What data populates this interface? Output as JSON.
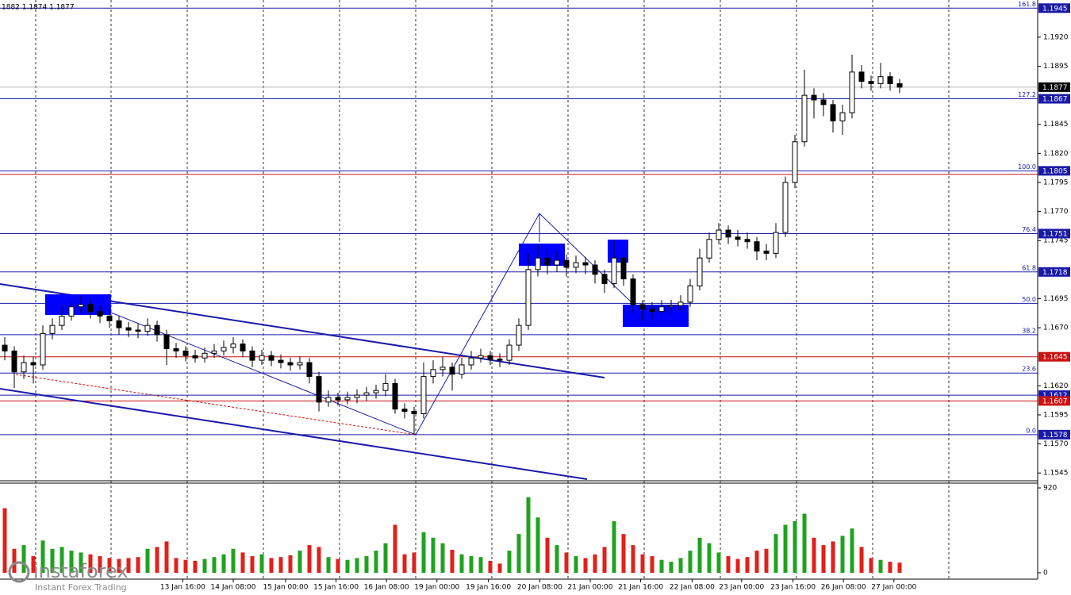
{
  "chart_data": {
    "type": "candlestick",
    "header": "1882 1.1874 1.1877",
    "brand": "instaforex",
    "tagline": "Instant Forex Trading",
    "open": [
      1.1655,
      1.165,
      1.1632,
      1.164,
      1.1638,
      1.1665,
      1.1672,
      1.168,
      1.1688,
      1.169,
      1.1684,
      1.168,
      1.1676,
      1.167,
      1.1668,
      1.1667,
      1.1672,
      1.1664,
      1.1652,
      1.165,
      1.1646,
      1.1644,
      1.1648,
      1.165,
      1.1653,
      1.1656,
      1.165,
      1.1642,
      1.1646,
      1.1642,
      1.164,
      1.1638,
      1.164,
      1.1628,
      1.1606,
      1.161,
      1.1608,
      1.161,
      1.1612,
      1.1614,
      1.1616,
      1.1622,
      1.16,
      1.1598,
      1.1596,
      1.1628,
      1.1634,
      1.1636,
      1.163,
      1.1638,
      1.1644,
      1.1646,
      1.1643,
      1.1642,
      1.1655,
      1.1672,
      1.172,
      1.173,
      1.1724,
      1.1728,
      1.1722,
      1.1726,
      1.1724,
      1.1716,
      1.1708,
      1.173,
      1.1712,
      1.169,
      1.1686,
      1.1684,
      1.1688,
      1.1689,
      1.1692,
      1.1706,
      1.173,
      1.1746,
      1.1754,
      1.1748,
      1.1746,
      1.1744,
      1.1736,
      1.1734,
      1.1752,
      1.1795,
      1.183,
      1.187,
      1.1866,
      1.1862,
      1.1848,
      1.1855,
      1.189,
      1.1882,
      1.188,
      1.1886,
      1.188
    ],
    "high": [
      1.1662,
      1.1654,
      1.1646,
      1.1645,
      1.1672,
      1.1678,
      1.1688,
      1.1694,
      1.1697,
      1.1694,
      1.1689,
      1.1685,
      1.168,
      1.1675,
      1.1674,
      1.1678,
      1.1676,
      1.1668,
      1.1657,
      1.1654,
      1.1651,
      1.1653,
      1.1656,
      1.1659,
      1.1662,
      1.166,
      1.1654,
      1.1651,
      1.165,
      1.1647,
      1.1644,
      1.1645,
      1.1644,
      1.1632,
      1.1616,
      1.1614,
      1.1615,
      1.1617,
      1.1619,
      1.1621,
      1.163,
      1.1626,
      1.1605,
      1.1602,
      1.164,
      1.1642,
      1.1645,
      1.164,
      1.1644,
      1.165,
      1.1652,
      1.165,
      1.1648,
      1.166,
      1.1678,
      1.1734,
      1.1742,
      1.1738,
      1.1736,
      1.1733,
      1.1732,
      1.1731,
      1.1728,
      1.172,
      1.1745,
      1.1736,
      1.1716,
      1.1694,
      1.1692,
      1.1694,
      1.1694,
      1.1698,
      1.1712,
      1.1738,
      1.1752,
      1.176,
      1.1758,
      1.1754,
      1.1752,
      1.1748,
      1.1742,
      1.176,
      1.18,
      1.1836,
      1.1892,
      1.1876,
      1.1872,
      1.1866,
      1.1862,
      1.1905,
      1.1896,
      1.1887,
      1.1898,
      1.189,
      1.1884
    ],
    "low": [
      1.1642,
      1.1618,
      1.1626,
      1.1622,
      1.1634,
      1.166,
      1.1668,
      1.1676,
      1.1683,
      1.1678,
      1.1674,
      1.167,
      1.1664,
      1.1662,
      1.1661,
      1.1663,
      1.1658,
      1.1638,
      1.1644,
      1.1641,
      1.164,
      1.164,
      1.1644,
      1.1646,
      1.1648,
      1.1645,
      1.1636,
      1.1638,
      1.1637,
      1.1635,
      1.1633,
      1.1634,
      1.1622,
      1.1598,
      1.1602,
      1.1603,
      1.1604,
      1.1605,
      1.1607,
      1.1609,
      1.1611,
      1.1596,
      1.1592,
      1.1578,
      1.1592,
      1.1622,
      1.1628,
      1.1616,
      1.1626,
      1.1634,
      1.164,
      1.1638,
      1.1636,
      1.1638,
      1.165,
      1.1668,
      1.1714,
      1.1716,
      1.1718,
      1.1714,
      1.1717,
      1.1716,
      1.1708,
      1.17,
      1.1704,
      1.1706,
      1.1682,
      1.1676,
      1.1678,
      1.168,
      1.1682,
      1.1685,
      1.1688,
      1.1702,
      1.1726,
      1.1742,
      1.1742,
      1.174,
      1.1738,
      1.1728,
      1.1728,
      1.173,
      1.1748,
      1.179,
      1.1826,
      1.185,
      1.1852,
      1.1838,
      1.1836,
      1.185,
      1.1876,
      1.1874,
      1.1876,
      1.1874,
      1.1872
    ],
    "close": [
      1.165,
      1.1632,
      1.164,
      1.1638,
      1.1665,
      1.1672,
      1.168,
      1.1688,
      1.169,
      1.1684,
      1.168,
      1.1676,
      1.167,
      1.1668,
      1.1667,
      1.1672,
      1.1664,
      1.1652,
      1.165,
      1.1646,
      1.1644,
      1.1648,
      1.165,
      1.1653,
      1.1656,
      1.165,
      1.1642,
      1.1646,
      1.1642,
      1.164,
      1.1638,
      1.164,
      1.1628,
      1.1606,
      1.161,
      1.1608,
      1.161,
      1.1612,
      1.1614,
      1.1616,
      1.1622,
      1.16,
      1.1598,
      1.1596,
      1.1628,
      1.1634,
      1.1636,
      1.163,
      1.1638,
      1.1644,
      1.1646,
      1.1643,
      1.1642,
      1.1655,
      1.1672,
      1.172,
      1.173,
      1.1724,
      1.1728,
      1.1722,
      1.1726,
      1.1724,
      1.1716,
      1.1708,
      1.173,
      1.1712,
      1.169,
      1.1686,
      1.1684,
      1.1688,
      1.1689,
      1.1692,
      1.1706,
      1.173,
      1.1746,
      1.1754,
      1.1748,
      1.1746,
      1.1744,
      1.1736,
      1.1734,
      1.1752,
      1.1795,
      1.183,
      1.187,
      1.1866,
      1.1862,
      1.1848,
      1.1855,
      1.189,
      1.1882,
      1.188,
      1.1886,
      1.188,
      1.1877
    ],
    "volume": [
      700,
      260,
      300,
      180,
      350,
      260,
      280,
      240,
      220,
      200,
      180,
      160,
      150,
      160,
      170,
      260,
      280,
      340,
      160,
      140,
      130,
      150,
      170,
      200,
      260,
      220,
      180,
      200,
      160,
      170,
      190,
      240,
      300,
      280,
      170,
      150,
      140,
      160,
      180,
      240,
      320,
      520,
      200,
      220,
      440,
      380,
      320,
      250,
      200,
      180,
      170,
      130,
      100,
      240,
      420,
      820,
      600,
      380,
      300,
      220,
      180,
      160,
      200,
      280,
      560,
      420,
      300,
      200,
      180,
      140,
      120,
      160,
      240,
      380,
      320,
      220,
      180,
      150,
      170,
      240,
      260,
      420,
      520,
      560,
      640,
      380,
      300,
      340,
      400,
      480,
      280,
      160,
      140,
      120,
      110
    ],
    "up_color": "#1fa31f",
    "down_color": "#e0201a",
    "ylim": [
      1.1539,
      1.1952
    ],
    "yticks": [
      1.1545,
      {
        "value": 1.157,
        "label": "1.1570"
      },
      1.1595,
      {
        "value": 1.162,
        "label": "1.1620"
      },
      {
        "value": 1.167,
        "label": "1.1670"
      },
      1.1695,
      1.1745,
      {
        "value": 1.177,
        "label": "1.1770"
      },
      1.1795,
      {
        "value": 1.182,
        "label": "1.1820"
      },
      1.1845,
      1.1895,
      {
        "value": 1.192,
        "label": "1.1920"
      }
    ],
    "volume_ylim": [
      0,
      920
    ],
    "volume_yticks": [
      0,
      920
    ],
    "xticks": [
      {
        "value": 18.7,
        "label": "13 Jan 16:00"
      },
      {
        "value": 24,
        "label": "14 Jan 08:00"
      },
      {
        "value": 29.5,
        "label": "15 Jan 00:00"
      },
      {
        "value": 34.8,
        "label": "15 Jan 16:00"
      },
      {
        "value": 40.1,
        "label": "16 Jan 08:00"
      },
      {
        "value": 45.4,
        "label": "19 Jan 00:00"
      },
      {
        "value": 50.8,
        "label": "19 Jan 16:00"
      },
      {
        "value": 56.2,
        "label": "20 Jan 08:00"
      },
      {
        "value": 61.5,
        "label": "21 Jan 00:00"
      },
      {
        "value": 66.8,
        "label": "21 Jan 16:00"
      },
      {
        "value": 72.2,
        "label": "22 Jan 08:00"
      },
      {
        "value": 77.4,
        "label": "23 Jan 00:00"
      },
      {
        "value": 82.8,
        "label": "23 Jan 16:00"
      },
      {
        "value": 88.1,
        "label": "26 Jan 08:00"
      },
      {
        "value": 93.4,
        "label": "27 Jan 00:00"
      }
    ],
    "fib_levels": [
      {
        "label": "161.8",
        "value": 1.1945
      },
      {
        "label": "127.2",
        "value": 1.1867
      },
      {
        "label": "100.0",
        "value": 1.1805
      },
      {
        "label": "76.4",
        "value": 1.1751
      },
      {
        "label": "61.8",
        "value": 1.1718
      },
      {
        "label": "50.0",
        "value": 1.1691
      },
      {
        "label": "38.2",
        "value": 1.1664
      },
      {
        "label": "23.6",
        "value": 1.1631
      },
      {
        "label": "0.0",
        "value": 1.1578
      }
    ],
    "fib_color": "#1a1aa8",
    "hlines": [
      {
        "value": 1.1802,
        "color": "#cc1111"
      },
      {
        "value": 1.1645,
        "color": "#cc1111"
      },
      {
        "value": 1.1607,
        "color": "#cc1111"
      },
      {
        "value": 1.1612,
        "color": "#1a1aa8"
      },
      {
        "value": 1.1877,
        "color": "#b8b8b8"
      }
    ],
    "price_tags": [
      {
        "value": 1.1945,
        "color": "#1a1aa8"
      },
      {
        "value": 1.1877,
        "color": "#000000"
      },
      {
        "value": 1.1867,
        "color": "#1a1aa8"
      },
      {
        "value": 1.1805,
        "color": "#1a1aa8"
      },
      {
        "value": 1.1751,
        "color": "#1a1aa8"
      },
      {
        "value": 1.1718,
        "color": "#1a1aa8"
      },
      {
        "value": 1.1645,
        "color": "#cc1111"
      },
      {
        "value": 1.1612,
        "color": "#1a1aa8"
      },
      {
        "value": 1.1607,
        "color": "#cc1111"
      },
      {
        "value": 1.1578,
        "color": "#1a1aa8"
      }
    ]
  }
}
